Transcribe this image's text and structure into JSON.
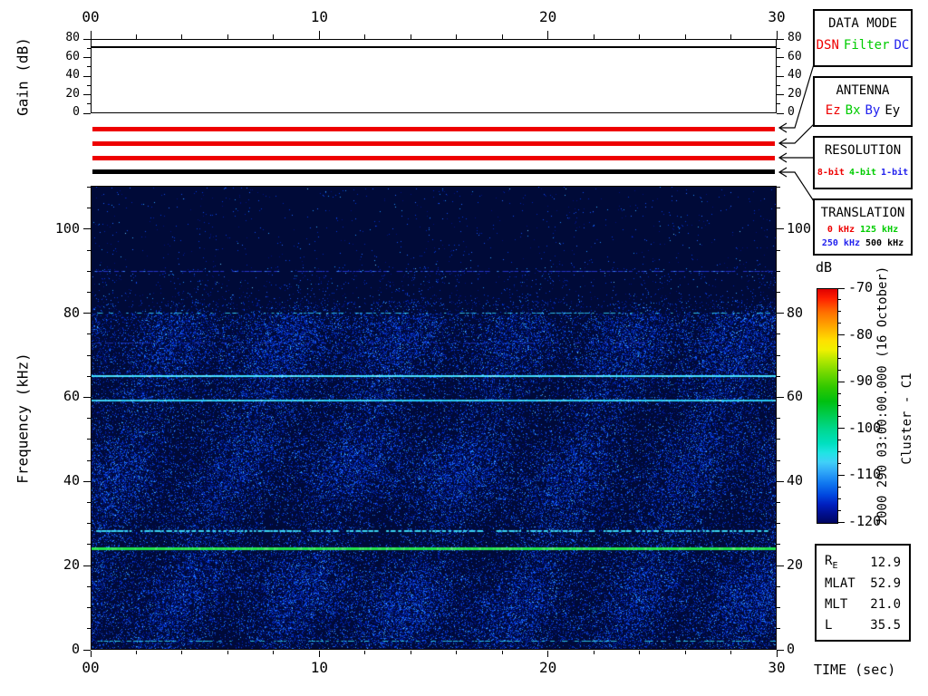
{
  "axis_labels": {
    "gain": "Gain (dB)",
    "frequency": "Frequency (kHz)",
    "time": "TIME (sec)",
    "colorbar": "dB"
  },
  "side_annotations": {
    "datetime": "2000 290 03:00:00.000 (16 October)",
    "spacecraft": "Cluster - C1"
  },
  "status_bars": [
    {
      "name": "data-mode-bar",
      "color": "#ee0000"
    },
    {
      "name": "antenna-bar",
      "color": "#ee0000"
    },
    {
      "name": "resolution-bar",
      "color": "#ee0000"
    },
    {
      "name": "translation-bar",
      "color": "#000000"
    }
  ],
  "panels": {
    "data_mode": {
      "title": "DATA MODE",
      "items": [
        {
          "label": "DSN",
          "color": "#ee0000"
        },
        {
          "label": "Filter",
          "color": "#00cc00"
        },
        {
          "label": "DC",
          "color": "#2222ee"
        }
      ]
    },
    "antenna": {
      "title": "ANTENNA",
      "items": [
        {
          "label": "Ez",
          "color": "#ee0000"
        },
        {
          "label": "Bx",
          "color": "#00cc00"
        },
        {
          "label": "By",
          "color": "#2222ee"
        },
        {
          "label": "Ey",
          "color": "#000000"
        }
      ]
    },
    "resolution": {
      "title": "RESOLUTION",
      "items": [
        {
          "label": "8-bit",
          "color": "#ee0000"
        },
        {
          "label": "4-bit",
          "color": "#00cc00"
        },
        {
          "label": "1-bit",
          "color": "#2222ee"
        }
      ]
    },
    "translation": {
      "title": "TRANSLATION",
      "lines": [
        [
          {
            "label": "0 kHz",
            "color": "#ee0000"
          },
          {
            "label": "125 kHz",
            "color": "#00cc00"
          }
        ],
        [
          {
            "label": "250 kHz",
            "color": "#2222ee"
          },
          {
            "label": "500 kHz",
            "color": "#000000"
          }
        ]
      ]
    }
  },
  "ephemeris": {
    "rows": [
      {
        "label": "R",
        "sub": "E",
        "value": "12.9"
      },
      {
        "label": "MLAT",
        "sub": "",
        "value": "52.9"
      },
      {
        "label": "MLT",
        "sub": "",
        "value": "21.0"
      },
      {
        "label": "L",
        "sub": "",
        "value": "35.5"
      }
    ]
  },
  "chart_data": [
    {
      "id": "gain-panel",
      "type": "line",
      "ylabel": "Gain (dB)",
      "ylim": [
        0,
        80
      ],
      "yticks": [
        0,
        20,
        40,
        60,
        80
      ],
      "ytick_minor_step": 10,
      "xlim": [
        0,
        30
      ],
      "xticks": [
        0,
        10,
        20,
        30
      ],
      "xtick_labels": [
        "00",
        "10",
        "20",
        "30"
      ],
      "xtick_minor_step": 2,
      "series": [
        {
          "name": "receiver-gain",
          "shape": "constant",
          "value_db": 72
        }
      ]
    },
    {
      "id": "spectrogram",
      "type": "heatmap",
      "xlabel": "TIME (sec)",
      "ylabel": "Frequency (kHz)",
      "xlim": [
        0,
        30
      ],
      "xticks": [
        0,
        10,
        20,
        30
      ],
      "xtick_labels": [
        "00",
        "10",
        "20",
        "30"
      ],
      "xtick_minor_step": 2,
      "ylim": [
        0,
        110
      ],
      "yticks": [
        0,
        20,
        40,
        60,
        80,
        100
      ],
      "ytick_minor_step": 5,
      "background": "#000a38",
      "noise_palette": [
        "#001080",
        "#0024b0",
        "#0038d8",
        "#104cf0",
        "#2268ff",
        "#1e8cff",
        "#30a8ff",
        "#63c8ff"
      ],
      "noise": {
        "dense_max_khz": 80,
        "dense_density": 0.45,
        "transition_khz": 83,
        "transition_density": 0.12,
        "sparse_density": 0.028,
        "very_sparse_density": 0.014
      },
      "emission_lines": [
        {
          "freq_khz": 90,
          "color": "#2434c8",
          "style": "dotted",
          "thickness": 1,
          "duty": 0.8,
          "accent_color": "#3c8cff"
        },
        {
          "freq_khz": 80,
          "color": "#28b4e0",
          "style": "dotted",
          "thickness": 1,
          "duty": 0.45,
          "accent_color": "#40d0f0"
        },
        {
          "freq_khz": 73,
          "color": "#1830b0",
          "style": "dotted",
          "thickness": 1,
          "duty": 0.4
        },
        {
          "freq_khz": 65,
          "color": "#40e0ff",
          "style": "solid",
          "thickness": 2
        },
        {
          "freq_khz": 59,
          "color": "#28c6ee",
          "style": "solid",
          "thickness": 2
        },
        {
          "freq_khz": 28,
          "color": "#38d2f0",
          "style": "dotted",
          "thickness": 2,
          "duty": 0.9
        },
        {
          "freq_khz": 24,
          "color": "#20e24a",
          "style": "solid",
          "thickness": 3
        },
        {
          "freq_khz": 2,
          "color": "#2cc2e4",
          "style": "dotted",
          "thickness": 1,
          "duty": 0.55
        }
      ],
      "colorbar": {
        "label": "dB",
        "max_db": -70,
        "min_db": -120,
        "tick_labels": [
          "-70",
          "-80",
          "-90",
          "-100",
          "-110",
          "-120"
        ],
        "tick_minor_step": 2.5
      }
    }
  ]
}
